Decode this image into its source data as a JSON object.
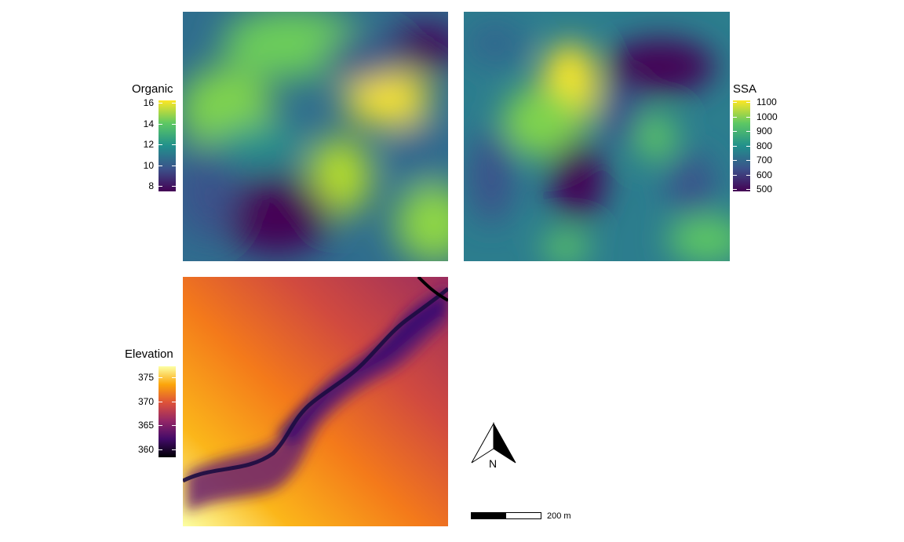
{
  "panels": {
    "organic": {
      "legend_title": "Organic",
      "ticks": [
        "16",
        "14",
        "12",
        "10",
        "8"
      ],
      "colormap": "viridis"
    },
    "ssa": {
      "legend_title": "SSA",
      "ticks": [
        "1100",
        "1000",
        "900",
        "800",
        "700",
        "600",
        "500"
      ],
      "colormap": "viridis"
    },
    "elevation": {
      "legend_title": "Elevation",
      "ticks": [
        "375",
        "370",
        "365",
        "360"
      ],
      "colormap": "inferno"
    }
  },
  "north_arrow": {
    "label": "N"
  },
  "scale_bar": {
    "label": "200 m"
  },
  "colors": {
    "viridis": [
      "#440154",
      "#3b528b",
      "#21908c",
      "#5dc863",
      "#fde725"
    ],
    "inferno": [
      "#000004",
      "#420a68",
      "#932667",
      "#dd513a",
      "#fca50a",
      "#fcffa4"
    ]
  }
}
